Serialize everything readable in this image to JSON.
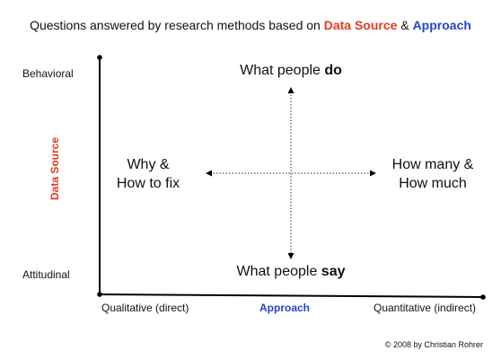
{
  "title": {
    "prefix": "Questions answered by research methods based on ",
    "data_source": "Data Source",
    "amp": " & ",
    "approach": "Approach"
  },
  "y_axis": {
    "label": "Data Source",
    "top": "Behavioral",
    "bottom": "Attitudinal"
  },
  "x_axis": {
    "label": "Approach",
    "left": "Qualitative (direct)",
    "right": "Quantitative (indirect)"
  },
  "quadrants": {
    "top_prefix": "What people ",
    "top_bold": "do",
    "bottom_prefix": "What people ",
    "bottom_bold": "say",
    "left_line1": "Why &",
    "left_line2": "How to fix",
    "right_line1": "How many &",
    "right_line2": "How much"
  },
  "copyright": "© 2008 by Christian Rohrer",
  "colors": {
    "data_source": "#e03a1e",
    "approach": "#2446c9"
  }
}
